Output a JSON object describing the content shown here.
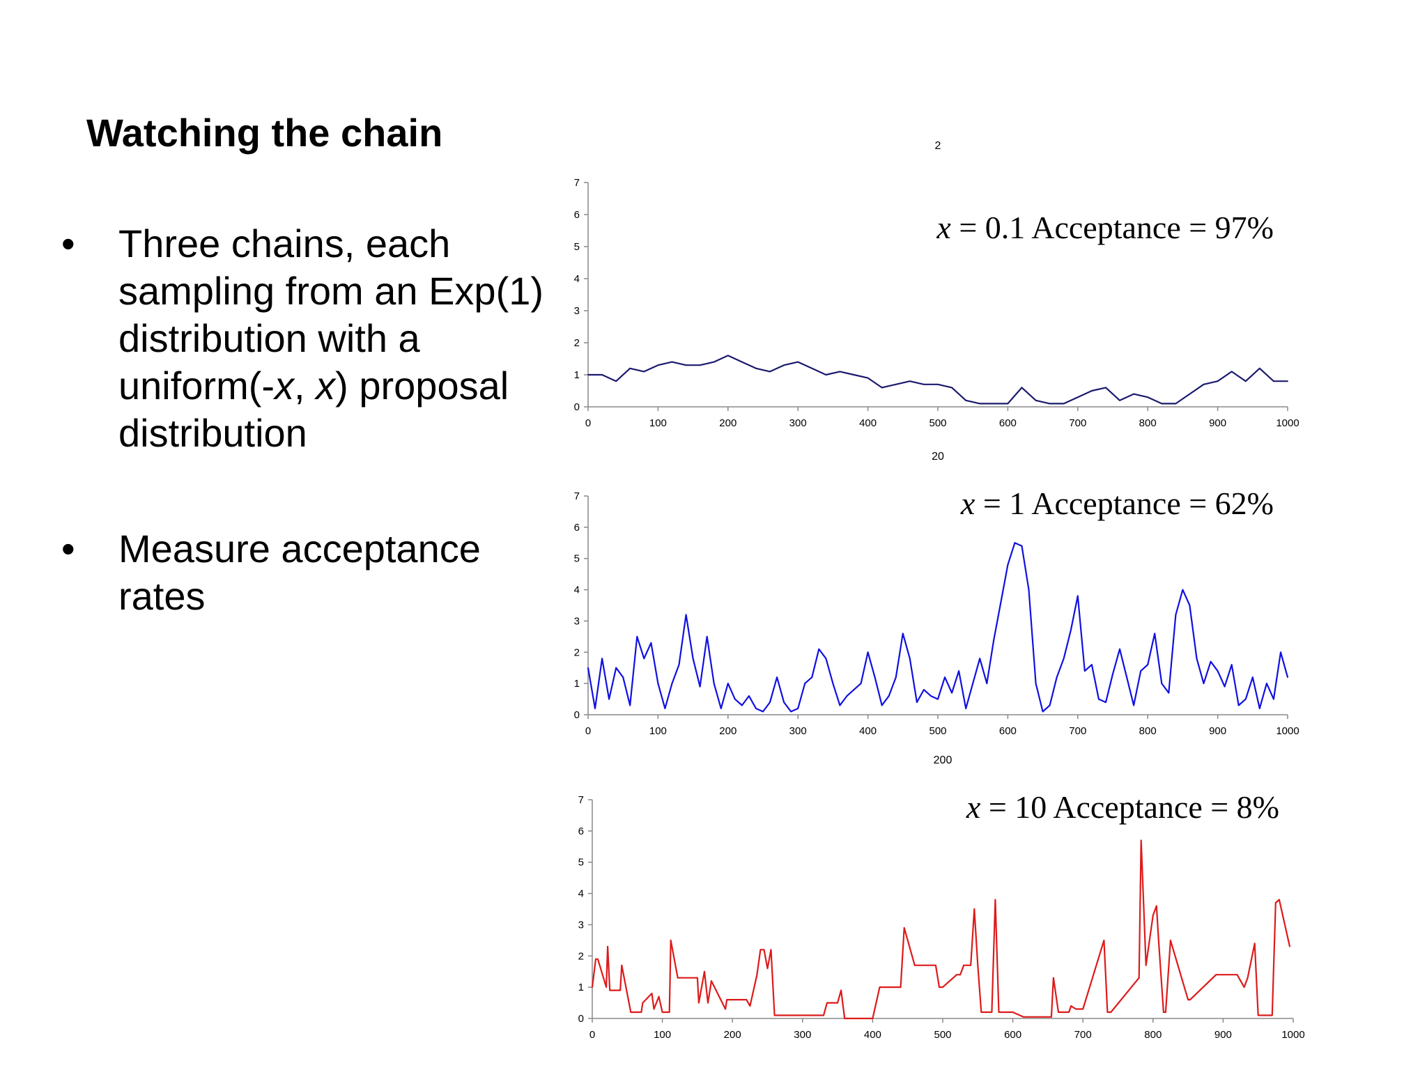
{
  "slide": {
    "title": "Watching the chain",
    "bullets": [
      {
        "marker": "•",
        "segments": [
          {
            "text": "Three chains, each sampling from an Exp(1) distribution with a uniform(-",
            "italic": false
          },
          {
            "text": "x",
            "italic": true
          },
          {
            "text": ", ",
            "italic": false
          },
          {
            "text": "x",
            "italic": true
          },
          {
            "text": ") proposal distribution",
            "italic": false
          }
        ]
      },
      {
        "marker": "•",
        "segments": [
          {
            "text": "Measure acceptance rates",
            "italic": false
          }
        ]
      }
    ]
  },
  "chart_data": [
    {
      "type": "line",
      "title": "2",
      "annotation": {
        "var": "x",
        "text": " = 0.1  Acceptance = 97%"
      },
      "color": "#1a1a6e",
      "xlim": [
        0,
        1000
      ],
      "ylim": [
        0,
        7
      ],
      "xticks": [
        0,
        100,
        200,
        300,
        400,
        500,
        600,
        700,
        800,
        900,
        1000
      ],
      "yticks": [
        0,
        1,
        2,
        3,
        4,
        5,
        6,
        7
      ],
      "x": [
        0,
        20,
        40,
        60,
        80,
        100,
        120,
        140,
        160,
        180,
        200,
        220,
        240,
        260,
        280,
        300,
        320,
        340,
        360,
        380,
        400,
        420,
        440,
        460,
        480,
        500,
        520,
        540,
        560,
        580,
        600,
        620,
        640,
        660,
        680,
        700,
        720,
        740,
        760,
        780,
        800,
        820,
        840,
        860,
        880,
        900,
        920,
        940,
        960,
        980,
        1000
      ],
      "y": [
        1.0,
        1.0,
        0.8,
        1.2,
        1.1,
        1.3,
        1.4,
        1.3,
        1.3,
        1.4,
        1.6,
        1.4,
        1.2,
        1.1,
        1.3,
        1.4,
        1.2,
        1.0,
        1.1,
        1.0,
        0.9,
        0.6,
        0.7,
        0.8,
        0.7,
        0.7,
        0.6,
        0.2,
        0.1,
        0.1,
        0.1,
        0.6,
        0.2,
        0.1,
        0.1,
        0.3,
        0.5,
        0.6,
        0.2,
        0.4,
        0.3,
        0.1,
        0.1,
        0.4,
        0.7,
        0.8,
        1.1,
        0.8,
        1.2,
        0.8,
        0.8
      ]
    },
    {
      "type": "line",
      "title": "20",
      "annotation": {
        "var": "x",
        "text": " = 1  Acceptance = 62%"
      },
      "color": "#1010e0",
      "xlim": [
        0,
        1000
      ],
      "ylim": [
        0,
        7
      ],
      "xticks": [
        0,
        100,
        200,
        300,
        400,
        500,
        600,
        700,
        800,
        900,
        1000
      ],
      "yticks": [
        0,
        1,
        2,
        3,
        4,
        5,
        6,
        7
      ],
      "x": [
        0,
        10,
        20,
        30,
        40,
        50,
        60,
        70,
        80,
        90,
        100,
        110,
        120,
        130,
        140,
        150,
        160,
        170,
        180,
        190,
        200,
        210,
        220,
        230,
        240,
        250,
        260,
        270,
        280,
        290,
        300,
        310,
        320,
        330,
        340,
        350,
        360,
        370,
        380,
        390,
        400,
        410,
        420,
        430,
        440,
        450,
        460,
        470,
        480,
        490,
        500,
        510,
        520,
        530,
        540,
        550,
        560,
        570,
        580,
        590,
        600,
        610,
        620,
        630,
        640,
        650,
        660,
        670,
        680,
        690,
        700,
        710,
        720,
        730,
        740,
        750,
        760,
        770,
        780,
        790,
        800,
        810,
        820,
        830,
        840,
        850,
        860,
        870,
        880,
        890,
        900,
        910,
        920,
        930,
        940,
        950,
        960,
        970,
        980,
        990,
        1000
      ],
      "y": [
        1.5,
        0.2,
        1.8,
        0.5,
        1.5,
        1.2,
        0.3,
        2.5,
        1.8,
        2.3,
        1.0,
        0.2,
        1.0,
        1.6,
        3.2,
        1.8,
        0.9,
        2.5,
        1.0,
        0.2,
        1.0,
        0.5,
        0.3,
        0.6,
        0.2,
        0.1,
        0.4,
        1.2,
        0.4,
        0.1,
        0.2,
        1.0,
        1.2,
        2.1,
        1.8,
        1.0,
        0.3,
        0.6,
        0.8,
        1.0,
        2.0,
        1.2,
        0.3,
        0.6,
        1.2,
        2.6,
        1.8,
        0.4,
        0.8,
        0.6,
        0.5,
        1.2,
        0.7,
        1.4,
        0.2,
        1.0,
        1.8,
        1.0,
        2.4,
        3.6,
        4.8,
        5.5,
        5.4,
        4.0,
        1.0,
        0.1,
        0.3,
        1.2,
        1.8,
        2.7,
        3.8,
        1.4,
        1.6,
        0.5,
        0.4,
        1.3,
        2.1,
        1.2,
        0.3,
        1.4,
        1.6,
        2.6,
        1.0,
        0.7,
        3.2,
        4.0,
        3.5,
        1.8,
        1.0,
        1.7,
        1.4,
        0.9,
        1.6,
        0.3,
        0.5,
        1.2,
        0.2,
        1.0,
        0.5,
        2.0,
        1.2
      ]
    },
    {
      "type": "line",
      "title": "200",
      "annotation": {
        "var": "x",
        "text": " = 10  Acceptance = 8%"
      },
      "color": "#dd1a1a",
      "xlim": [
        0,
        1000
      ],
      "ylim": [
        0,
        7
      ],
      "xticks": [
        0,
        100,
        200,
        300,
        400,
        500,
        600,
        700,
        800,
        900,
        1000
      ],
      "yticks": [
        0,
        1,
        2,
        3,
        4,
        5,
        6,
        7
      ],
      "x": [
        0,
        5,
        8,
        20,
        22,
        25,
        40,
        42,
        55,
        70,
        72,
        85,
        88,
        95,
        100,
        110,
        112,
        122,
        124,
        150,
        152,
        160,
        165,
        170,
        190,
        192,
        220,
        225,
        235,
        240,
        245,
        250,
        255,
        260,
        300,
        330,
        335,
        350,
        355,
        360,
        400,
        410,
        425,
        440,
        445,
        460,
        490,
        495,
        500,
        520,
        525,
        530,
        540,
        545,
        550,
        555,
        570,
        575,
        580,
        600,
        615,
        655,
        658,
        665,
        680,
        683,
        690,
        700,
        730,
        735,
        740,
        780,
        783,
        790,
        800,
        805,
        808,
        815,
        818,
        825,
        850,
        853,
        890,
        920,
        930,
        935,
        945,
        950,
        970,
        975,
        980,
        995
      ],
      "y": [
        1.0,
        1.9,
        1.9,
        1.0,
        2.3,
        0.9,
        0.9,
        1.7,
        0.2,
        0.2,
        0.5,
        0.8,
        0.3,
        0.7,
        0.2,
        0.2,
        2.5,
        1.3,
        1.3,
        1.3,
        0.5,
        1.5,
        0.5,
        1.2,
        0.3,
        0.6,
        0.6,
        0.4,
        1.4,
        2.2,
        2.2,
        1.6,
        2.2,
        0.1,
        0.1,
        0.1,
        0.5,
        0.5,
        0.9,
        0.0,
        0.0,
        1.0,
        1.0,
        1.0,
        2.9,
        1.7,
        1.7,
        1.0,
        1.0,
        1.4,
        1.4,
        1.7,
        1.7,
        3.5,
        1.7,
        0.2,
        0.2,
        3.8,
        0.2,
        0.2,
        0.05,
        0.05,
        1.3,
        0.2,
        0.2,
        0.4,
        0.3,
        0.3,
        2.5,
        0.2,
        0.2,
        1.3,
        5.7,
        1.7,
        3.3,
        3.6,
        2.5,
        0.2,
        0.2,
        2.5,
        0.6,
        0.6,
        1.4,
        1.4,
        1.0,
        1.3,
        2.4,
        0.1,
        0.1,
        3.7,
        3.8,
        2.3
      ]
    }
  ]
}
